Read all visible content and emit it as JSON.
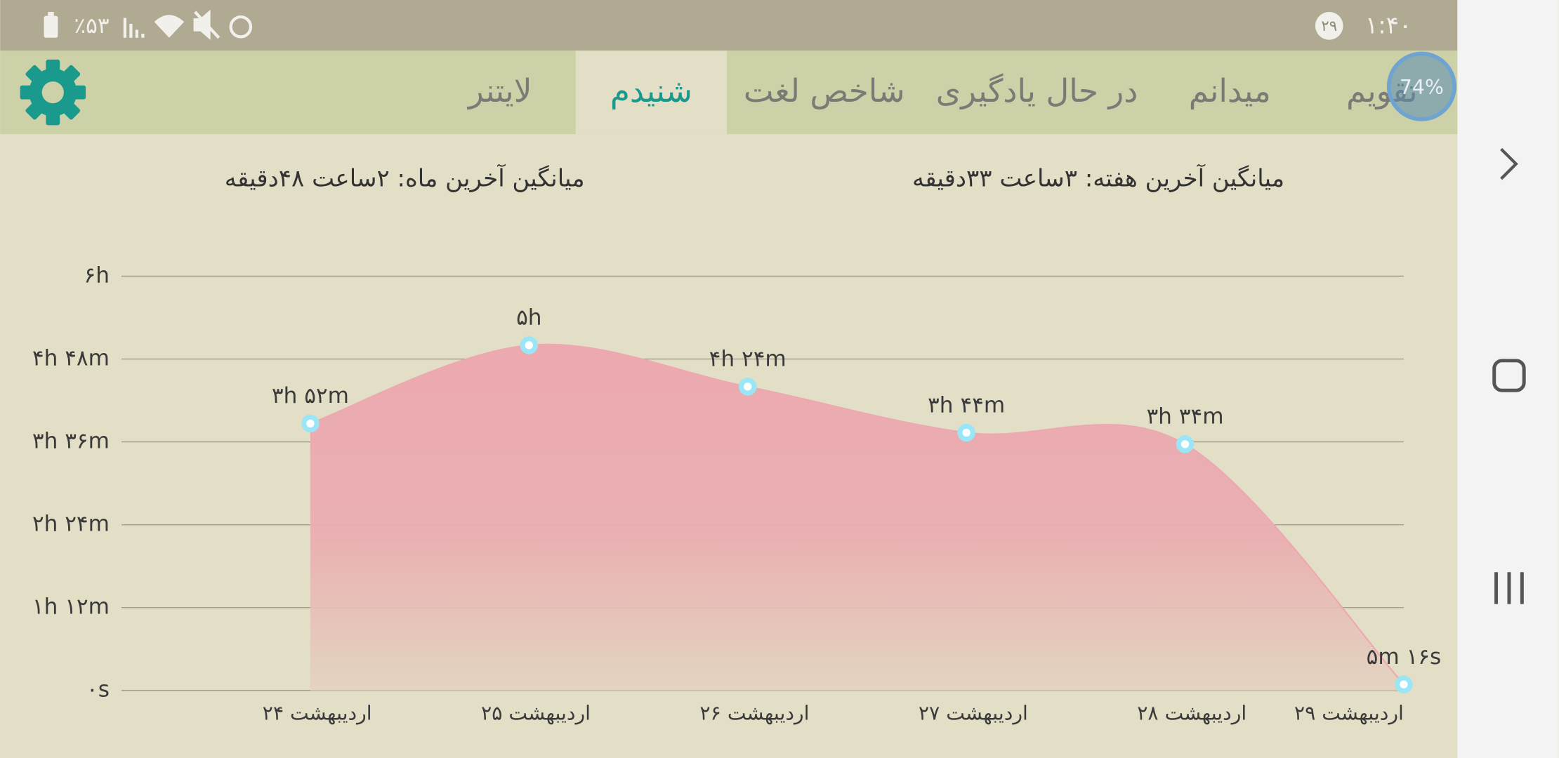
{
  "status_bar": {
    "battery": "٪۵۳",
    "notification_count": "۲۹",
    "time": "۱:۴۰"
  },
  "overlay_badge": "74%",
  "tabs": [
    {
      "label": "تقویم",
      "selected": false
    },
    {
      "label": "میدانم",
      "selected": false
    },
    {
      "label": "در حال یادگیری",
      "selected": false
    },
    {
      "label": "شاخص لغت",
      "selected": false
    },
    {
      "label": "شنیدم",
      "selected": true
    },
    {
      "label": "لایتنر",
      "selected": false
    }
  ],
  "summary": {
    "week": "میانگین آخرین هفته: ۳ساعت  ۳۳دقیقه",
    "month": "میانگین آخرین ماه: ۲ساعت  ۴۸دقیقه"
  },
  "chart_data": {
    "type": "area",
    "categories": [
      "۲۴ اردیبهشت",
      "۲۵ اردیبهشت",
      "۲۶ اردیبهشت",
      "۲۷ اردیبهشت",
      "۲۸ اردیبهشت",
      "۲۹ اردیبهشت"
    ],
    "values": [
      232,
      300,
      264,
      224,
      214,
      5.27
    ],
    "value_labels": [
      "۳h ۵۲m",
      "۵h",
      "۴h ۲۴m",
      "۳h ۴۴m",
      "۳h ۳۴m",
      "۵m ۱۶s"
    ],
    "color": "#eca9b0",
    "point_color": "#9be6f6",
    "ylim": [
      0,
      360
    ],
    "yticks": [
      {
        "value": 0,
        "label": "۰s"
      },
      {
        "value": 72,
        "label": "۱h ۱۲m"
      },
      {
        "value": 144,
        "label": "۲h ۲۴m"
      },
      {
        "value": 216,
        "label": "۳h ۳۶m"
      },
      {
        "value": 288,
        "label": "۴h ۴۸m"
      },
      {
        "value": 360,
        "label": "۶h"
      }
    ],
    "grid": true
  }
}
